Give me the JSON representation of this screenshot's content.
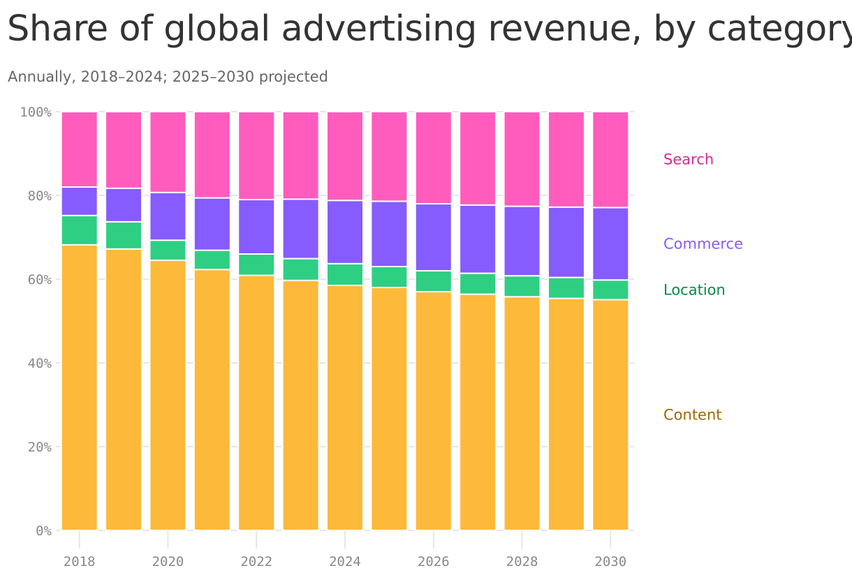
{
  "title": "Share of global advertising revenue, by category",
  "subtitle": "Annually, 2018–2024; 2025–2030 projected",
  "chart_data": {
    "type": "bar",
    "stacked": true,
    "title": "Share of global advertising revenue, by category",
    "subtitle": "Annually, 2018–2024; 2025–2030 projected",
    "xlabel": "",
    "ylabel": "",
    "ylim": [
      0,
      100
    ],
    "categories": [
      "2018",
      "2019",
      "2020",
      "2021",
      "2022",
      "2023",
      "2024",
      "2025",
      "2026",
      "2027",
      "2028",
      "2029",
      "2030"
    ],
    "x_tick_labels": [
      "2018",
      "2020",
      "2022",
      "2024",
      "2026",
      "2028",
      "2030"
    ],
    "y_tick_labels": [
      "0%",
      "20%",
      "40%",
      "60%",
      "80%",
      "100%"
    ],
    "y_tick_values": [
      0,
      20,
      40,
      60,
      80,
      100
    ],
    "series": [
      {
        "name": "Content",
        "color": "#FDB93A",
        "label_color": "#9A6A00",
        "values": [
          68.2,
          67.2,
          64.5,
          62.3,
          60.9,
          59.7,
          58.5,
          58.0,
          57.0,
          56.4,
          55.8,
          55.4,
          55.1
        ]
      },
      {
        "name": "Location",
        "color": "#2ECF82",
        "label_color": "#068A46",
        "values": [
          7.0,
          6.5,
          4.8,
          4.6,
          5.1,
          5.2,
          5.2,
          5.0,
          5.0,
          5.0,
          5.0,
          5.0,
          4.7
        ]
      },
      {
        "name": "Commerce",
        "color": "#865CFE",
        "label_color": "#865CFE",
        "values": [
          6.8,
          8.0,
          11.4,
          12.5,
          13.0,
          14.2,
          15.1,
          15.6,
          16.0,
          16.3,
          16.6,
          16.8,
          17.3
        ]
      },
      {
        "name": "Search",
        "color": "#FF5CBE",
        "label_color": "#D92A8F",
        "values": [
          18.0,
          18.3,
          19.3,
          20.6,
          21.0,
          20.9,
          21.2,
          21.4,
          22.0,
          22.3,
          22.6,
          22.8,
          22.9
        ]
      }
    ],
    "grid": true,
    "legend": "direct labels at right"
  }
}
